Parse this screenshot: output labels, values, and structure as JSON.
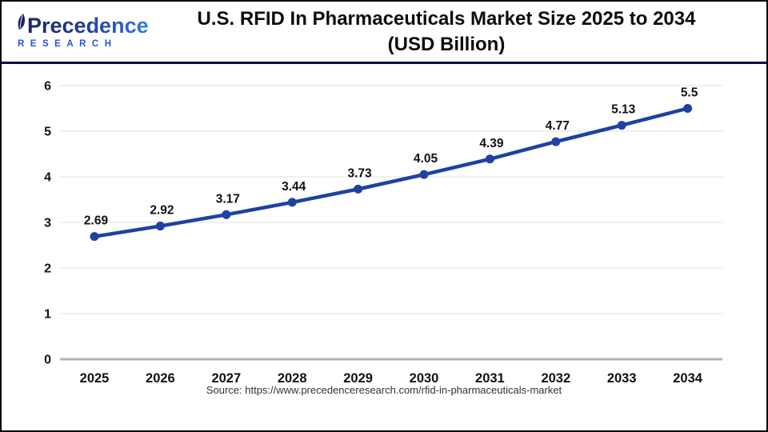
{
  "header": {
    "logo": {
      "name": "Precedence",
      "subtitle": "RESEARCH"
    },
    "title_line1": "U.S. RFID In Pharmaceuticals Market Size 2025 to 2034",
    "title_line2": "(USD Billion)"
  },
  "chart_data": {
    "type": "line",
    "title": "U.S. RFID In Pharmaceuticals Market Size 2025 to 2034 (USD Billion)",
    "categories": [
      "2025",
      "2026",
      "2027",
      "2028",
      "2029",
      "2030",
      "2031",
      "2032",
      "2033",
      "2034"
    ],
    "series": [
      {
        "name": "U.S. RFID in Pharmaceuticals Market Size (USD Billion)",
        "values": [
          2.69,
          2.92,
          3.17,
          3.44,
          3.73,
          4.05,
          4.39,
          4.77,
          5.13,
          5.5
        ]
      }
    ],
    "value_labels": [
      "2.69",
      "2.92",
      "3.17",
      "3.44",
      "3.73",
      "4.05",
      "4.39",
      "4.77",
      "5.13",
      "5.5"
    ],
    "ylim": [
      0,
      6
    ],
    "yticks": [
      0,
      1,
      2,
      3,
      4,
      5,
      6
    ],
    "grid": true,
    "legend_position": "none"
  },
  "footer": {
    "source": "Source: https://www.precedenceresearch.com/rfid-in-pharmaceuticals-market"
  },
  "colors": {
    "line": "#1f41a1",
    "marker": "#1f41a1",
    "grid": "#e7e7e7",
    "axis_baseline": "#b3b3b3",
    "tick_text": "#111111",
    "value_label": "#111111",
    "header_rule": "#0b1043"
  }
}
